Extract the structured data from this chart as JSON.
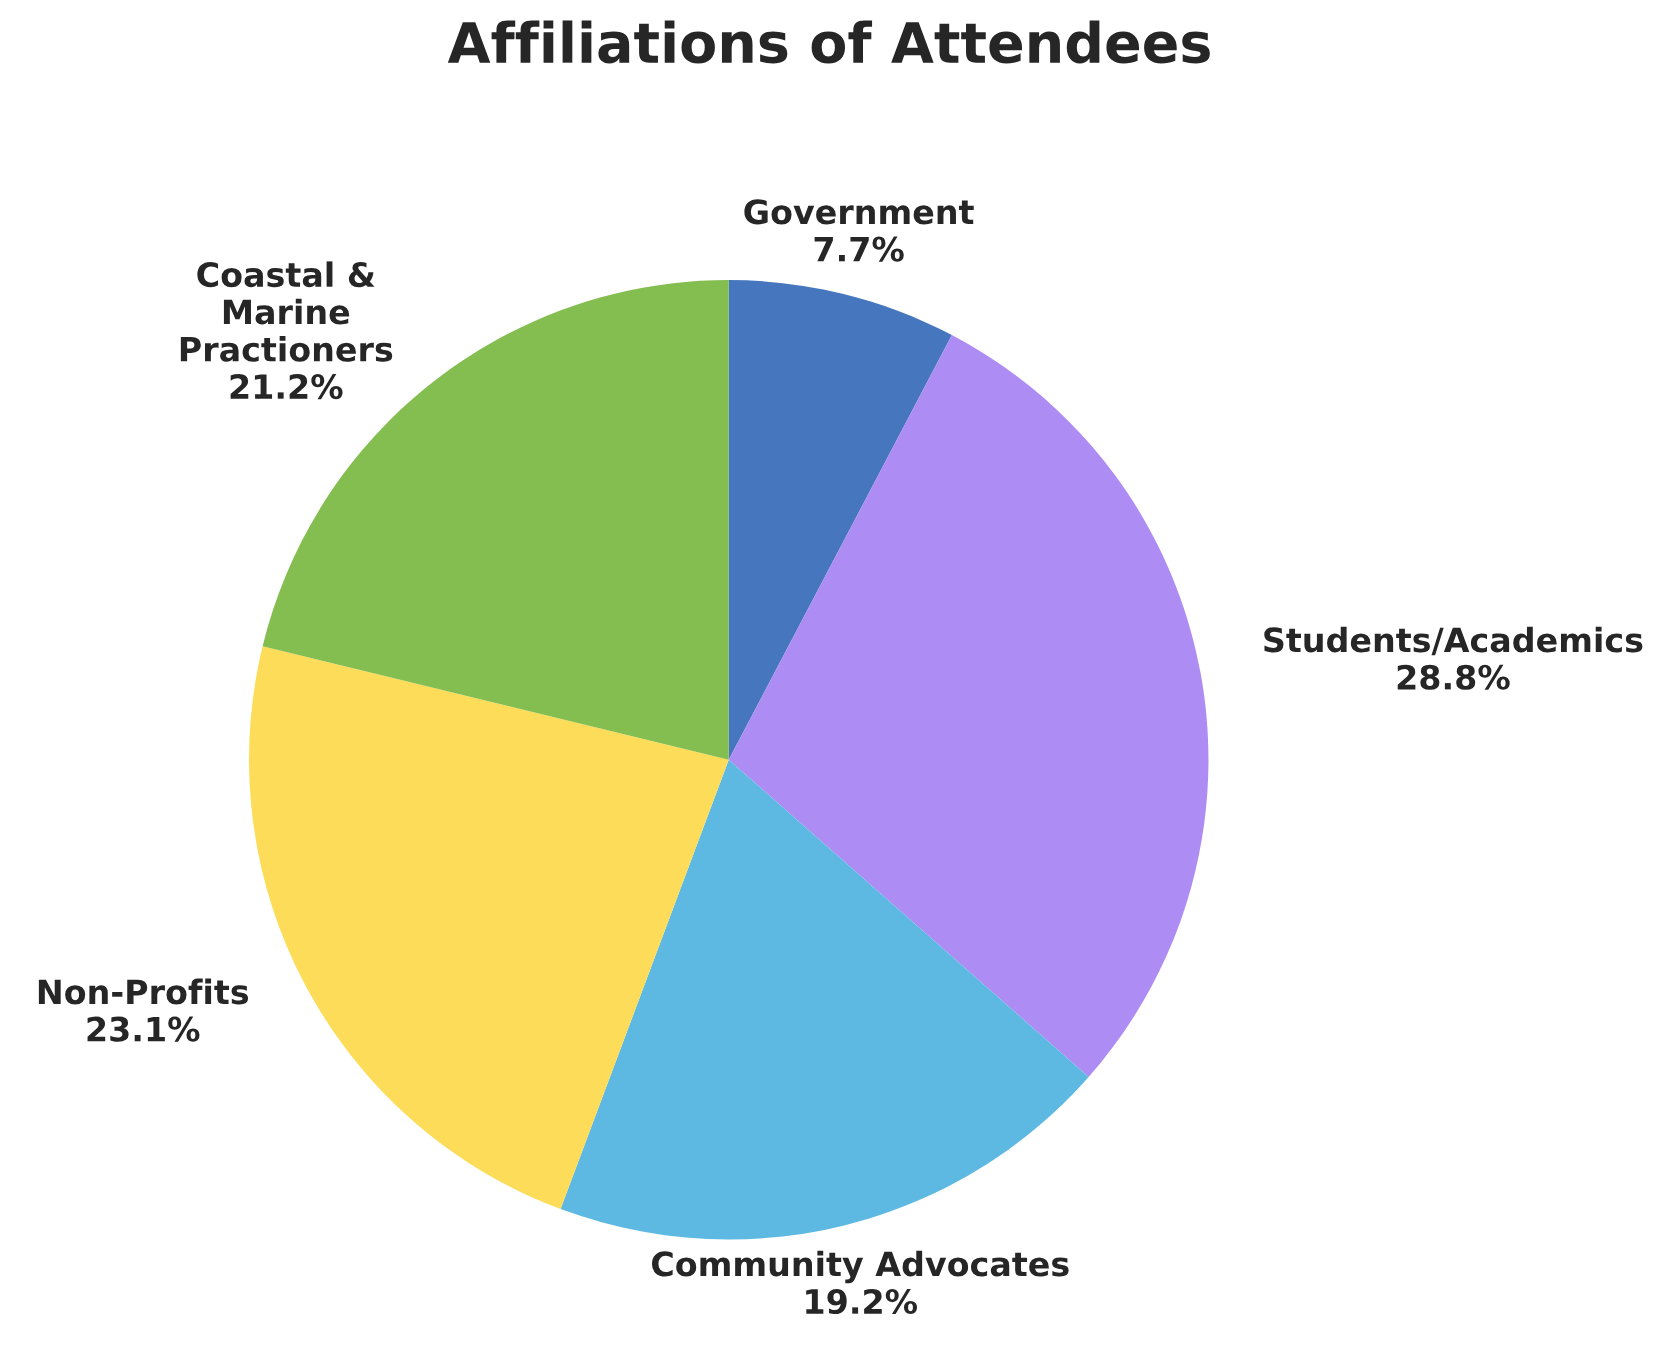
{
  "chart_data": {
    "type": "pie",
    "title": "Affiliations of Attendees",
    "categories": [
      "Government",
      "Students/Academics",
      "Community Advocates",
      "Non-Profits",
      "Coastal &\nMarine\nPractioners"
    ],
    "values": [
      7.7,
      28.8,
      19.2,
      23.1,
      21.2
    ],
    "value_labels": [
      "7.7%",
      "28.8%",
      "19.2%",
      "23.1%",
      "21.2%"
    ],
    "colors": [
      "#4677be",
      "#ad8cf4",
      "#5db9e2",
      "#fddc5a",
      "#84bd50"
    ],
    "legend": false
  }
}
